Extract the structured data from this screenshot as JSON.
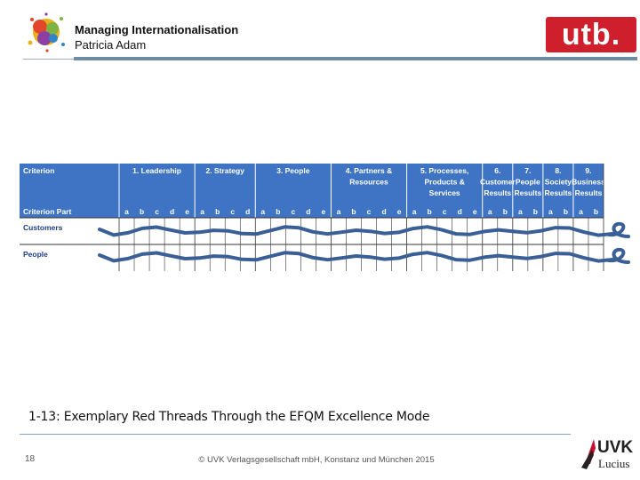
{
  "header": {
    "title": "Managing Internationalisation",
    "author": "Patricia Adam",
    "publisher_logo": "utb."
  },
  "table": {
    "header_bg": "#3f74c4",
    "row_text_color": "#1f3f86",
    "thread_color": "#3a5f97",
    "criterion_label": "Criterion",
    "criteria": [
      {
        "label": "1. Leadership",
        "parts": [
          "a",
          "b",
          "c",
          "d",
          "e"
        ]
      },
      {
        "label": "2. Strategy",
        "parts": [
          "a",
          "b",
          "c",
          "d"
        ]
      },
      {
        "label": "3. People",
        "parts": [
          "a",
          "b",
          "c",
          "d",
          "e"
        ]
      },
      {
        "label": "4. Partners & Resources",
        "parts": [
          "a",
          "b",
          "c",
          "d",
          "e"
        ]
      },
      {
        "label": "5. Processes, Products & Services",
        "parts": [
          "a",
          "b",
          "c",
          "d",
          "e"
        ]
      },
      {
        "label": "6. Customer Results",
        "parts": [
          "a",
          "b"
        ]
      },
      {
        "label": "7. People Results",
        "parts": [
          "a",
          "b"
        ]
      },
      {
        "label": "8. Society Results",
        "parts": [
          "a",
          "b"
        ]
      },
      {
        "label": "9. Business Results",
        "parts": [
          "a",
          "b"
        ]
      }
    ],
    "criterion_part_label": "Criterion Part",
    "rows": [
      "Customers",
      "People"
    ]
  },
  "caption": "1-13: Exemplary Red Threads Through the EFQM Excellence Mode",
  "footer": {
    "page_number": "18",
    "copyright": "© UVK Verlagsgesellschaft mbH, Konstanz und München 2015",
    "logo_brand": "UVK",
    "logo_sub": "Lucius"
  }
}
